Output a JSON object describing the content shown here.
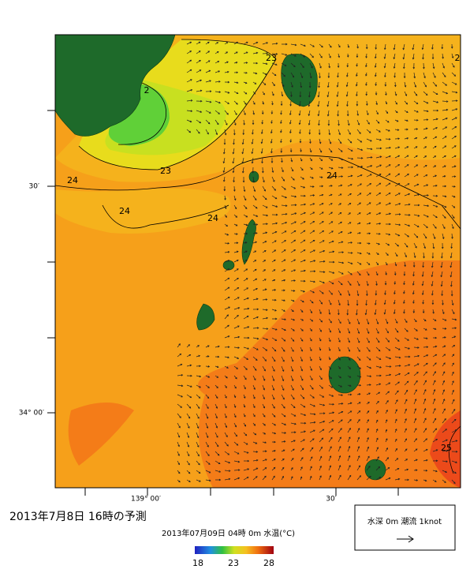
{
  "map": {
    "lat_labels": [
      "30′",
      "34° 00′"
    ],
    "lon_labels": [
      "139° 00′",
      "30′"
    ],
    "contour_labels": [
      "23",
      "2",
      "23",
      "24",
      "24",
      "24",
      "24",
      "25",
      "2"
    ]
  },
  "caption": {
    "title": "2013年7月8日 16時の予測",
    "subtitle": "2013年07月09日 04時 0m 水温(°C)"
  },
  "colorbar": {
    "labels": [
      18,
      23,
      28
    ]
  },
  "legend": {
    "text": "水深 0m 潮流 1knot"
  }
}
